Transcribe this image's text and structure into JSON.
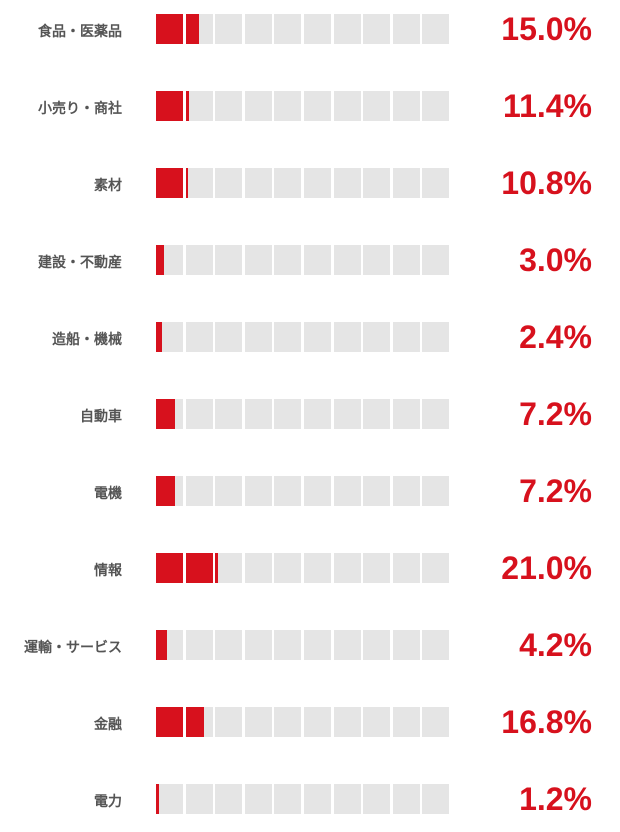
{
  "chart_data": {
    "type": "bar",
    "categories": [
      "食品・医薬品",
      "小売り・商社",
      "素材",
      "建設・不動産",
      "造船・機械",
      "自動車",
      "電機",
      "情報",
      "運輸・サービス",
      "金融",
      "電力"
    ],
    "values": [
      15.0,
      11.4,
      10.8,
      3.0,
      2.4,
      7.2,
      7.2,
      21.0,
      4.2,
      16.8,
      1.2
    ],
    "value_labels": [
      "15.0%",
      "11.4%",
      "10.8%",
      "3.0%",
      "2.4%",
      "7.2%",
      "7.2%",
      "21.0%",
      "4.2%",
      "16.8%",
      "1.2%"
    ],
    "cells_per_bar": 10,
    "units_per_cell": 10,
    "grid": true,
    "colors": {
      "fill": "#d7111d",
      "track": "#e5e5e5",
      "label": "#555555",
      "value": "#d7111d"
    }
  }
}
